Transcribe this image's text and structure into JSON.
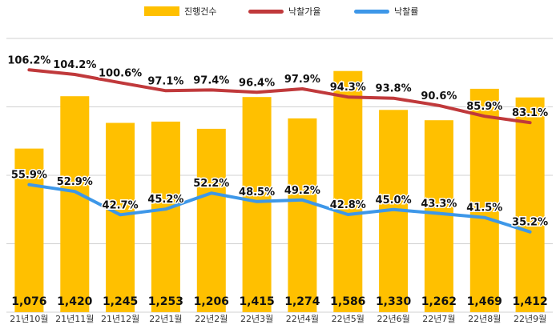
{
  "chart_data": {
    "type": "bar",
    "categories": [
      "21년10월",
      "21년11월",
      "21년12월",
      "22년1월",
      "22년2월",
      "22년3월",
      "22년4월",
      "22년5월",
      "22년6월",
      "22년7월",
      "22년8월",
      "22년9월"
    ],
    "series": [
      {
        "name": "진행건수",
        "type": "bar",
        "color": "#FFC000",
        "values": [
          1076,
          1420,
          1245,
          1253,
          1206,
          1415,
          1274,
          1586,
          1330,
          1262,
          1469,
          1412
        ],
        "labels": [
          "1,076",
          "1,420",
          "1,245",
          "1,253",
          "1,206",
          "1,415",
          "1,274",
          "1,586",
          "1,330",
          "1,262",
          "1,469",
          "1,412"
        ]
      },
      {
        "name": "낙찰가율",
        "type": "line",
        "color": "#C0393B",
        "values": [
          106.2,
          104.2,
          100.6,
          97.1,
          97.4,
          96.4,
          97.9,
          94.3,
          93.8,
          90.6,
          85.9,
          83.1
        ],
        "labels": [
          "106.2%",
          "104.2%",
          "100.6%",
          "97.1%",
          "97.4%",
          "96.4%",
          "97.9%",
          "94.3%",
          "93.8%",
          "90.6%",
          "85.9%",
          "83.1%"
        ]
      },
      {
        "name": "낙찰률",
        "type": "line",
        "color": "#3D97E8",
        "values": [
          55.9,
          52.9,
          42.7,
          45.2,
          52.2,
          48.5,
          49.2,
          42.8,
          45.0,
          43.3,
          41.5,
          35.2
        ],
        "labels": [
          "55.9%",
          "52.9%",
          "42.7%",
          "45.2%",
          "52.2%",
          "48.5%",
          "49.2%",
          "42.8%",
          "45.0%",
          "43.3%",
          "41.5%",
          "35.2%"
        ]
      }
    ],
    "bar_ylim": [
      0,
      1800
    ],
    "line_ylim": [
      0,
      120
    ],
    "grid": true,
    "legend": "top-center",
    "title": "",
    "xlabel": "",
    "ylabel": ""
  }
}
